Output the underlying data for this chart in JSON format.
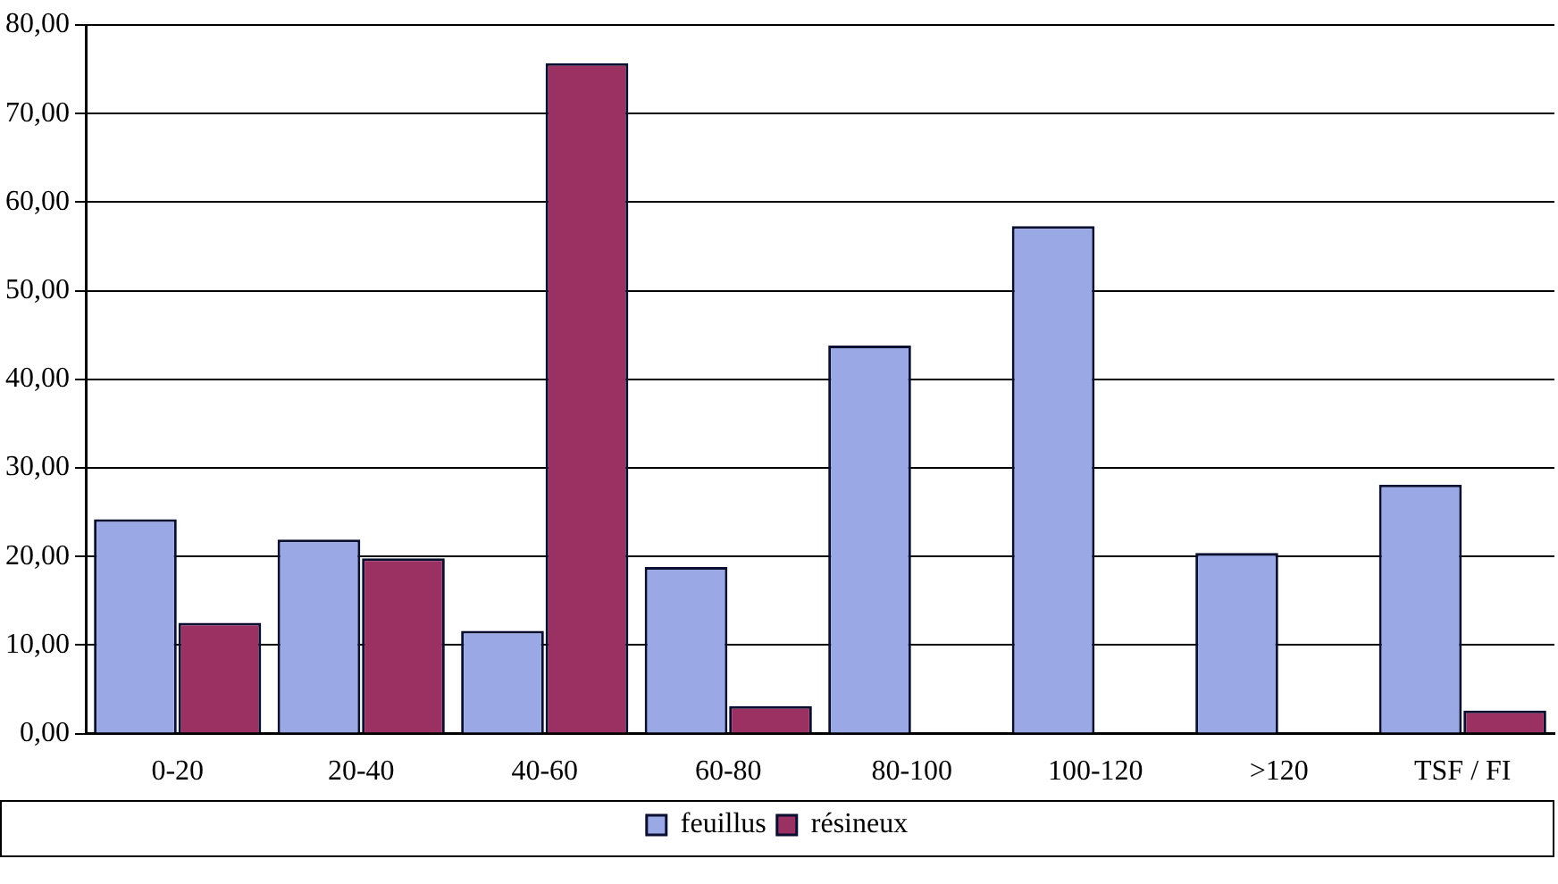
{
  "chart_data": {
    "type": "bar",
    "categories": [
      "0-20",
      "20-40",
      "40-60",
      "60-80",
      "80-100",
      "100-120",
      ">120",
      "TSF / FI"
    ],
    "series": [
      {
        "name": "feuillus",
        "color": "#9aa9e6",
        "values": [
          24.2,
          21.9,
          11.6,
          18.8,
          43.8,
          57.3,
          20.4,
          28.1
        ]
      },
      {
        "name": "résineux",
        "color": "#9b3162",
        "values": [
          12.5,
          19.8,
          75.7,
          3.1,
          null,
          null,
          null,
          2.6
        ]
      }
    ],
    "ylim": [
      0,
      80
    ],
    "yticks": [
      {
        "value": 0,
        "label": "0,00"
      },
      {
        "value": 10,
        "label": "10,00"
      },
      {
        "value": 20,
        "label": "20,00"
      },
      {
        "value": 30,
        "label": "30,00"
      },
      {
        "value": 40,
        "label": "40,00"
      },
      {
        "value": 50,
        "label": "50,00"
      },
      {
        "value": 60,
        "label": "60,00"
      },
      {
        "value": 70,
        "label": "70,00"
      },
      {
        "value": 80,
        "label": "80,00"
      }
    ],
    "grid": "y",
    "legend": "bottom"
  }
}
